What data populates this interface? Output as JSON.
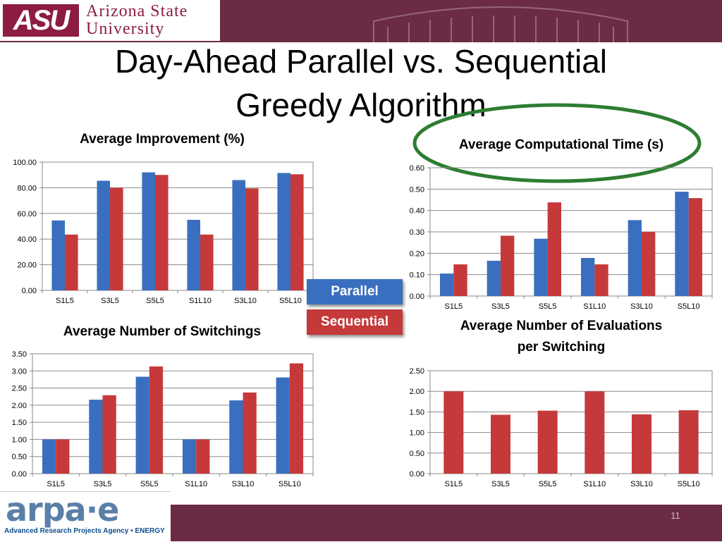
{
  "colors": {
    "parallel": "#3a6fbf",
    "sequential": "#c5393a",
    "maroon": "#6b2b44",
    "ellipse": "#2e7d32"
  },
  "header": {
    "logo_mark": "ASU",
    "logo_line1": "Arizona State",
    "logo_line2": "University"
  },
  "slide": {
    "title_line1": "Day-Ahead Parallel vs. Sequential",
    "title_line2": "Greedy Algorithm",
    "page_number": "11"
  },
  "legend": {
    "parallel": "Parallel",
    "sequential": "Sequential"
  },
  "footer": {
    "logo_text": "arpa·e",
    "tagline": "Advanced Research Projects Agency • ENERGY"
  },
  "chart_data": [
    {
      "id": "improvement",
      "type": "bar",
      "title": "Average Improvement (%)",
      "categories": [
        "S1L5",
        "S3L5",
        "S5L5",
        "S1L10",
        "S3L10",
        "S5L10"
      ],
      "series": [
        {
          "name": "Parallel",
          "values": [
            54.5,
            85.5,
            92.0,
            55.0,
            86.0,
            91.5
          ]
        },
        {
          "name": "Sequential",
          "values": [
            43.5,
            80.0,
            90.0,
            43.5,
            79.5,
            90.5
          ]
        }
      ],
      "ylim": [
        0,
        100
      ],
      "ticks": [
        0,
        20,
        40,
        60,
        80,
        100
      ],
      "tick_labels": [
        "0.00",
        "20.00",
        "40.00",
        "60.00",
        "80.00",
        "100.00"
      ],
      "grid": true
    },
    {
      "id": "comptime",
      "type": "bar",
      "title": "Average Computational Time (s)",
      "categories": [
        "S1L5",
        "S3L5",
        "S5L5",
        "S1L10",
        "S3L10",
        "S5L10"
      ],
      "series": [
        {
          "name": "Parallel",
          "values": [
            0.105,
            0.165,
            0.268,
            0.178,
            0.355,
            0.488
          ]
        },
        {
          "name": "Sequential",
          "values": [
            0.148,
            0.282,
            0.438,
            0.148,
            0.3,
            0.458
          ]
        }
      ],
      "ylim": [
        0,
        0.6
      ],
      "ticks": [
        0,
        0.1,
        0.2,
        0.3,
        0.4,
        0.5,
        0.6
      ],
      "tick_labels": [
        "0.00",
        "0.10",
        "0.20",
        "0.30",
        "0.40",
        "0.50",
        "0.60"
      ],
      "grid": true
    },
    {
      "id": "switchings",
      "type": "bar",
      "title": "Average Number of Switchings",
      "categories": [
        "S1L5",
        "S3L5",
        "S5L5",
        "S1L10",
        "S3L10",
        "S5L10"
      ],
      "series": [
        {
          "name": "Parallel",
          "values": [
            1.0,
            2.16,
            2.83,
            1.0,
            2.14,
            2.81
          ]
        },
        {
          "name": "Sequential",
          "values": [
            1.0,
            2.29,
            3.13,
            1.0,
            2.37,
            3.22
          ]
        }
      ],
      "ylim": [
        0,
        3.5
      ],
      "ticks": [
        0,
        0.5,
        1,
        1.5,
        2,
        2.5,
        3,
        3.5
      ],
      "tick_labels": [
        "0.00",
        "0.50",
        "1.00",
        "1.50",
        "2.00",
        "2.50",
        "3.00",
        "3.50"
      ],
      "grid": true
    },
    {
      "id": "evaluations",
      "type": "bar",
      "title_line1": "Average Number of Evaluations",
      "title_line2": "per Switching",
      "categories": [
        "S1L5",
        "S3L5",
        "S5L5",
        "S1L10",
        "S3L10",
        "S5L10"
      ],
      "series": [
        {
          "name": "Sequential",
          "values": [
            2.0,
            1.43,
            1.53,
            2.0,
            1.44,
            1.54
          ]
        }
      ],
      "ylim": [
        0,
        2.5
      ],
      "ticks": [
        0,
        0.5,
        1,
        1.5,
        2,
        2.5
      ],
      "tick_labels": [
        "0.00",
        "0.50",
        "1.00",
        "1.50",
        "2.00",
        "2.50"
      ],
      "grid": true
    }
  ]
}
